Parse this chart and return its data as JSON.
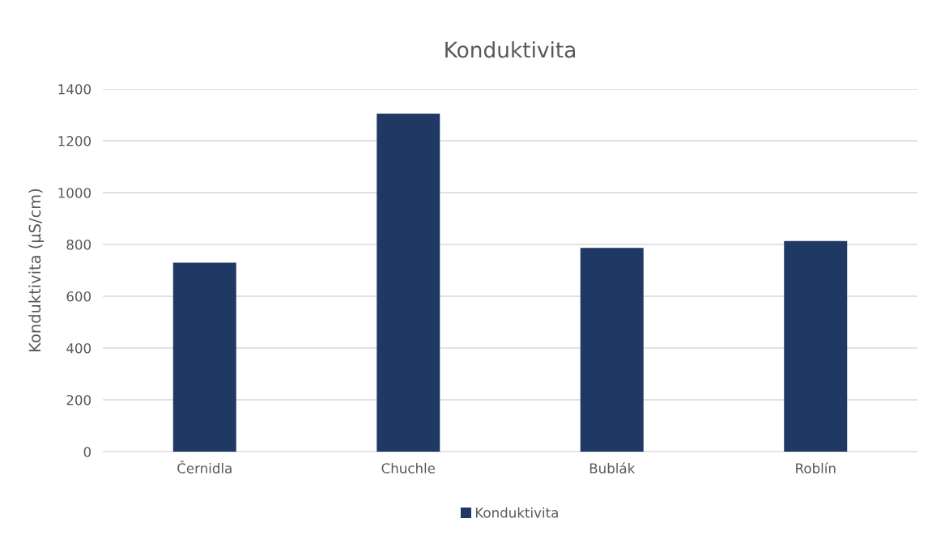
{
  "chart_data": {
    "type": "bar",
    "title": "Konduktivita",
    "ylabel": "Konduktivita (µS/cm)",
    "categories": [
      "Černidla",
      "Chuchle",
      "Bublák",
      "Roblín"
    ],
    "series": [
      {
        "name": "Konduktivita",
        "color": "#203864",
        "values": [
          730,
          1305,
          787,
          813
        ]
      }
    ],
    "ylim": [
      0,
      1400
    ],
    "yticks": [
      0,
      200,
      400,
      600,
      800,
      1000,
      1200,
      1400
    ],
    "grid": "y",
    "legend": "bottom"
  }
}
